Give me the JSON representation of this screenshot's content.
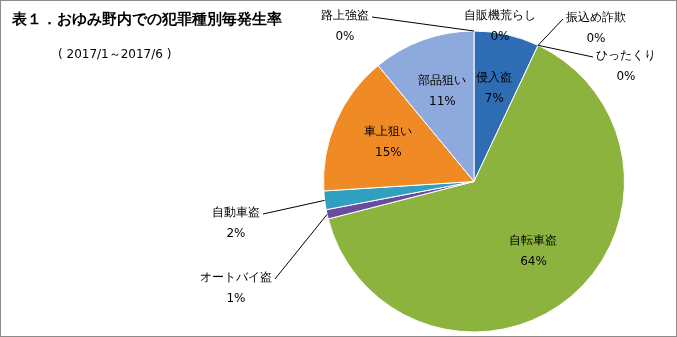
{
  "chart_data": {
    "type": "pie",
    "title": "表１．おゆみ野内での犯罪種別毎発生率",
    "subtitle": "( 2017/1～2017/6 )",
    "categories": [
      "侵入盗",
      "ひったくり",
      "振込め詐欺",
      "自転車盗",
      "オートバイ盗",
      "自動車盗",
      "車上狙い",
      "部品狙い",
      "路上強盗",
      "自販機荒らし"
    ],
    "values": [
      7,
      0,
      0,
      64,
      1,
      2,
      15,
      11,
      0,
      0
    ],
    "value_labels": [
      "7%",
      "0%",
      "0%",
      "64%",
      "1%",
      "2%",
      "15%",
      "11%",
      "0%",
      "0%"
    ],
    "colors": [
      "#2e6db4",
      "#4472c4",
      "#5b9bd5",
      "#8db33f",
      "#6a4c9c",
      "#31a0c0",
      "#f08a24",
      "#8ea9db",
      "#a5a5a5",
      "#ffc000"
    ],
    "data_labels": true
  }
}
